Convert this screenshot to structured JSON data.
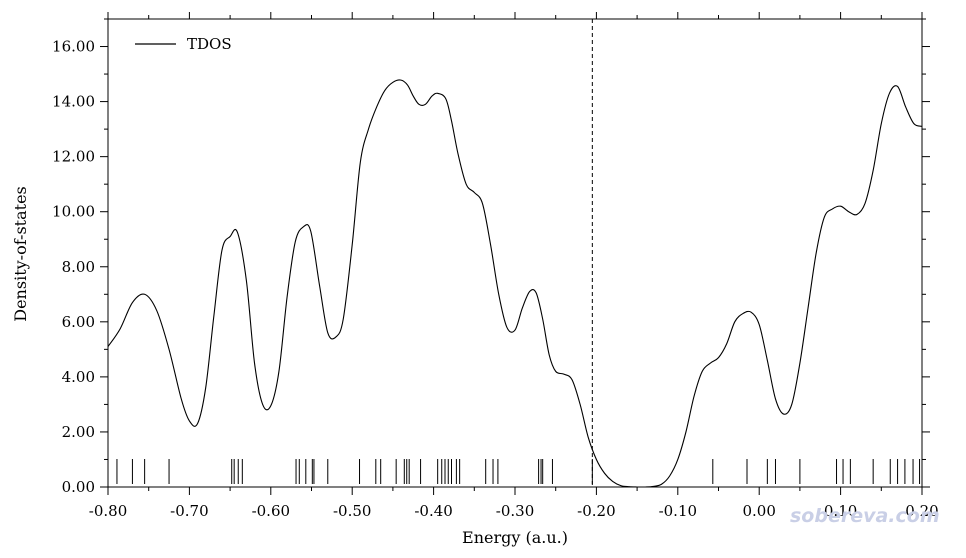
{
  "chart_data": {
    "type": "line",
    "title": "",
    "xlabel": "Energy (a.u.)",
    "ylabel": "Density-of-states",
    "xlim": [
      -0.8,
      0.2
    ],
    "ylim": [
      0.0,
      17.0
    ],
    "x_ticks": [
      "-0.80",
      "-0.70",
      "-0.60",
      "-0.50",
      "-0.40",
      "-0.30",
      "-0.20",
      "-0.10",
      "0.00",
      "0.10",
      "0.20"
    ],
    "y_ticks": [
      "0.00",
      "2.00",
      "4.00",
      "6.00",
      "8.00",
      "10.00",
      "12.00",
      "14.00",
      "16.00"
    ],
    "legend": {
      "position": "top-left",
      "entries": [
        "TDOS"
      ]
    },
    "grid": false,
    "series": [
      {
        "name": "TDOS",
        "color": "#000000",
        "x": [
          -0.8,
          -0.785,
          -0.77,
          -0.755,
          -0.74,
          -0.725,
          -0.71,
          -0.7,
          -0.69,
          -0.68,
          -0.67,
          -0.66,
          -0.65,
          -0.641,
          -0.63,
          -0.62,
          -0.61,
          -0.6,
          -0.59,
          -0.58,
          -0.57,
          -0.56,
          -0.551,
          -0.54,
          -0.53,
          -0.52,
          -0.511,
          -0.5,
          -0.49,
          -0.48,
          -0.47,
          -0.46,
          -0.45,
          -0.44,
          -0.432,
          -0.425,
          -0.418,
          -0.41,
          -0.402,
          -0.395,
          -0.385,
          -0.378,
          -0.37,
          -0.36,
          -0.35,
          -0.34,
          -0.33,
          -0.32,
          -0.31,
          -0.3,
          -0.291,
          -0.282,
          -0.274,
          -0.266,
          -0.258,
          -0.25,
          -0.24,
          -0.23,
          -0.22,
          -0.21,
          -0.2,
          -0.19,
          -0.18,
          -0.17,
          -0.16,
          -0.15,
          -0.14,
          -0.13,
          -0.12,
          -0.11,
          -0.1,
          -0.09,
          -0.08,
          -0.07,
          -0.06,
          -0.05,
          -0.04,
          -0.03,
          -0.02,
          -0.01,
          0.0,
          0.01,
          0.02,
          0.03,
          0.04,
          0.05,
          0.06,
          0.07,
          0.08,
          0.09,
          0.1,
          0.11,
          0.12,
          0.13,
          0.14,
          0.15,
          0.16,
          0.17,
          0.18,
          0.19,
          0.2
        ],
        "y": [
          5.1,
          5.75,
          6.7,
          7.0,
          6.4,
          5.0,
          3.2,
          2.4,
          2.3,
          3.6,
          6.2,
          8.6,
          9.1,
          9.25,
          7.5,
          4.5,
          3.0,
          2.95,
          4.2,
          6.9,
          8.9,
          9.45,
          9.3,
          7.3,
          5.6,
          5.45,
          6.1,
          8.8,
          11.8,
          13.0,
          13.8,
          14.4,
          14.7,
          14.78,
          14.6,
          14.2,
          13.9,
          13.9,
          14.2,
          14.3,
          14.1,
          13.3,
          12.1,
          11.0,
          10.7,
          10.3,
          8.8,
          7.0,
          5.8,
          5.7,
          6.5,
          7.1,
          7.05,
          6.1,
          4.8,
          4.2,
          4.1,
          3.9,
          3.0,
          1.8,
          1.0,
          0.5,
          0.2,
          0.05,
          0.01,
          0.0,
          0.0,
          0.02,
          0.1,
          0.4,
          1.0,
          2.0,
          3.3,
          4.2,
          4.5,
          4.7,
          5.2,
          6.0,
          6.3,
          6.35,
          5.9,
          4.6,
          3.2,
          2.65,
          3.0,
          4.5,
          6.5,
          8.5,
          9.8,
          10.1,
          10.2,
          10.0,
          9.9,
          10.3,
          11.5,
          13.2,
          14.3,
          14.55,
          13.8,
          13.2,
          13.1
        ],
        "draw_x_range": [
          -0.8,
          0.195
        ]
      }
    ],
    "fermi_level": {
      "x": -0.205,
      "style": "dashed"
    },
    "level_ticks": [
      -0.789,
      -0.77,
      -0.755,
      -0.725,
      -0.648,
      -0.645,
      -0.64,
      -0.635,
      -0.569,
      -0.565,
      -0.557,
      -0.549,
      -0.547,
      -0.53,
      -0.491,
      -0.471,
      -0.465,
      -0.446,
      -0.436,
      -0.433,
      -0.43,
      -0.416,
      -0.395,
      -0.39,
      -0.386,
      -0.382,
      -0.378,
      -0.372,
      -0.368,
      -0.336,
      -0.327,
      -0.321,
      -0.271,
      -0.268,
      -0.266,
      -0.254,
      -0.205,
      -0.057,
      -0.015,
      0.01,
      0.02,
      0.05,
      0.095,
      0.103,
      0.112,
      0.14,
      0.161,
      0.17,
      0.179,
      0.189,
      0.197
    ]
  },
  "watermark": "sobereva.com"
}
